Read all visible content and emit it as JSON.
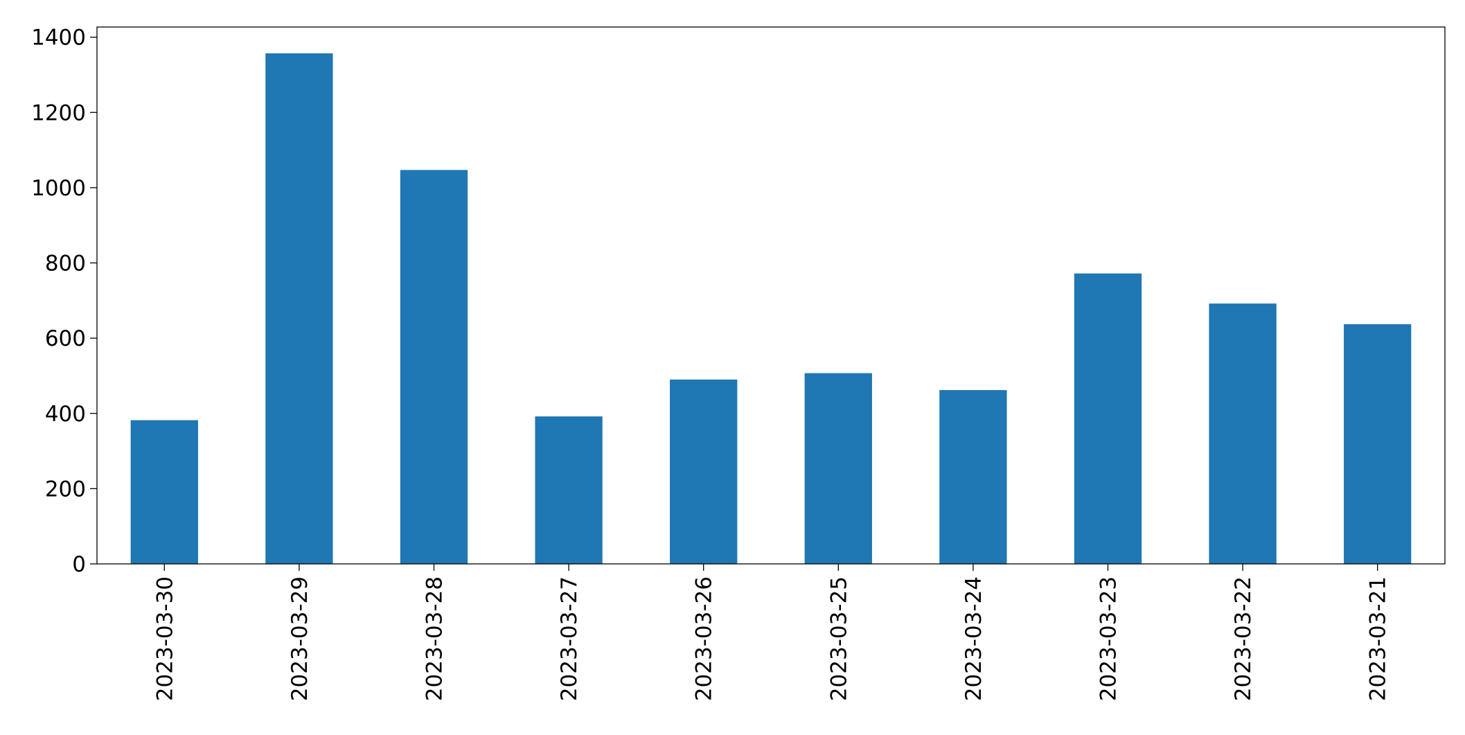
{
  "chart_data": {
    "type": "bar",
    "categories": [
      "2023-03-30",
      "2023-03-29",
      "2023-03-28",
      "2023-03-27",
      "2023-03-26",
      "2023-03-25",
      "2023-03-24",
      "2023-03-23",
      "2023-03-22",
      "2023-03-21"
    ],
    "values": [
      382,
      1357,
      1047,
      392,
      490,
      507,
      462,
      772,
      692,
      637
    ],
    "color": "#1f77b4",
    "ylim": [
      0,
      1427
    ],
    "yticks": [
      0,
      200,
      400,
      600,
      800,
      1000,
      1200,
      1400
    ],
    "grid": false
  }
}
